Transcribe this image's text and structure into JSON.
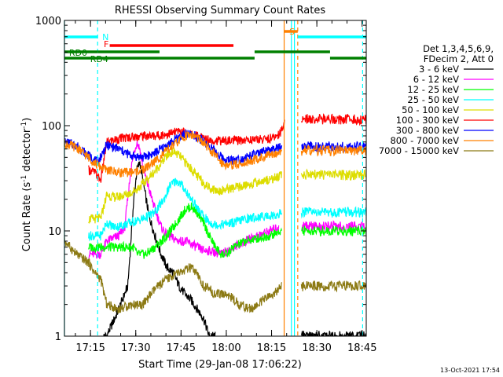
{
  "chart_data": {
    "type": "line",
    "title": "RHESSI Observing Summary Count Rates",
    "xlabel": "Start Time (29-Jan-08 17:06:22)",
    "ylabel_main": "Count Rate (s",
    "ylabel_sup1": "-1",
    "ylabel_mid": " detector",
    "ylabel_sup2": "-1",
    "ylabel_end": ")",
    "y_scale": "log",
    "ylim": [
      1,
      1000
    ],
    "xlim_minutes": [
      0,
      100
    ],
    "x_ticks": [
      {
        "m": 8.63,
        "label": "17:15"
      },
      {
        "m": 23.63,
        "label": "17:30"
      },
      {
        "m": 38.63,
        "label": "17:45"
      },
      {
        "m": 53.63,
        "label": "18:00"
      },
      {
        "m": 68.63,
        "label": "18:15"
      },
      {
        "m": 83.63,
        "label": "18:30"
      },
      {
        "m": 98.63,
        "label": "18:45"
      }
    ],
    "y_ticks": [
      {
        "v": 1,
        "label": "1"
      },
      {
        "v": 10,
        "label": "10"
      },
      {
        "v": 100,
        "label": "100"
      },
      {
        "v": 1000,
        "label": "1000"
      }
    ],
    "legend_header": [
      "Det 1,3,4,5,6,9,",
      "FDecim 2, Att 0"
    ],
    "series": [
      {
        "name": "3 - 6 keV",
        "color": "#000000",
        "points": [
          [
            13,
            1
          ],
          [
            14,
            1
          ],
          [
            18,
            1.8
          ],
          [
            21,
            3
          ],
          [
            22,
            8
          ],
          [
            23,
            20
          ],
          [
            24,
            38
          ],
          [
            25,
            45
          ],
          [
            26,
            30
          ],
          [
            28,
            14
          ],
          [
            30,
            9
          ],
          [
            32,
            6
          ],
          [
            34,
            4.5
          ],
          [
            36,
            4
          ],
          [
            38,
            3
          ],
          [
            40,
            2.5
          ],
          [
            42,
            2.2
          ],
          [
            44,
            1.8
          ],
          [
            46,
            1.5
          ],
          [
            48,
            1
          ],
          [
            50,
            1
          ]
        ]
      },
      {
        "name": "6 - 12 keV",
        "color": "#ff00ff",
        "points": [
          [
            8,
            6
          ],
          [
            12,
            6
          ],
          [
            14,
            8
          ],
          [
            16,
            8.5
          ],
          [
            18,
            9
          ],
          [
            20,
            11
          ],
          [
            22,
            38
          ],
          [
            23,
            55
          ],
          [
            24,
            70
          ],
          [
            25,
            60
          ],
          [
            26,
            40
          ],
          [
            28,
            25
          ],
          [
            30,
            16
          ],
          [
            32,
            11
          ],
          [
            34,
            9
          ],
          [
            36,
            8.5
          ],
          [
            38,
            8
          ],
          [
            40,
            8
          ],
          [
            42,
            7.5
          ],
          [
            44,
            7
          ],
          [
            46,
            6.5
          ],
          [
            48,
            6.5
          ],
          [
            52,
            6
          ],
          [
            56,
            7
          ],
          [
            60,
            8
          ],
          [
            64,
            9
          ],
          [
            68,
            10
          ],
          [
            70,
            10.5
          ],
          [
            71,
            11
          ]
        ]
      },
      {
        "name": "12 - 25 keV",
        "color": "#00ff00",
        "points": [
          [
            8,
            7
          ],
          [
            12,
            7
          ],
          [
            14,
            7
          ],
          [
            20,
            7
          ],
          [
            23,
            7
          ],
          [
            24,
            6
          ],
          [
            27,
            6
          ],
          [
            30,
            7
          ],
          [
            34,
            9
          ],
          [
            38,
            13
          ],
          [
            40,
            16
          ],
          [
            42,
            17
          ],
          [
            44,
            15
          ],
          [
            46,
            12
          ],
          [
            48,
            9
          ],
          [
            50,
            7
          ],
          [
            52,
            6
          ],
          [
            54,
            6
          ],
          [
            56,
            7
          ],
          [
            58,
            7.5
          ],
          [
            60,
            8
          ],
          [
            64,
            8.5
          ],
          [
            68,
            9
          ],
          [
            70,
            9.5
          ],
          [
            72,
            10
          ]
        ]
      },
      {
        "name": "25 - 50 keV",
        "color": "#00ffff",
        "points": [
          [
            8,
            9
          ],
          [
            12,
            9
          ],
          [
            14,
            12
          ],
          [
            16,
            11
          ],
          [
            18,
            11
          ],
          [
            20,
            11.5
          ],
          [
            22,
            12
          ],
          [
            24,
            12.5
          ],
          [
            26,
            13
          ],
          [
            30,
            15
          ],
          [
            33,
            20
          ],
          [
            35,
            27
          ],
          [
            37,
            30
          ],
          [
            39,
            27
          ],
          [
            42,
            20
          ],
          [
            45,
            15
          ],
          [
            48,
            12
          ],
          [
            50,
            11.5
          ],
          [
            52,
            11.5
          ],
          [
            56,
            12
          ],
          [
            60,
            13
          ],
          [
            64,
            13.5
          ],
          [
            68,
            14
          ],
          [
            70,
            14
          ],
          [
            72,
            15
          ]
        ]
      },
      {
        "name": "50 - 100 keV",
        "color": "#dddd00",
        "points": [
          [
            8,
            13
          ],
          [
            12,
            13
          ],
          [
            14,
            22
          ],
          [
            16,
            21
          ],
          [
            18,
            21
          ],
          [
            20,
            22
          ],
          [
            22,
            23
          ],
          [
            24,
            25
          ],
          [
            26,
            28
          ],
          [
            28,
            32
          ],
          [
            31,
            40
          ],
          [
            34,
            52
          ],
          [
            36,
            57
          ],
          [
            38,
            52
          ],
          [
            41,
            42
          ],
          [
            44,
            33
          ],
          [
            47,
            27
          ],
          [
            49,
            25
          ],
          [
            51,
            24
          ],
          [
            54,
            25
          ],
          [
            58,
            26
          ],
          [
            62,
            28
          ],
          [
            66,
            30
          ],
          [
            70,
            32
          ],
          [
            72,
            34
          ]
        ]
      },
      {
        "name": "100 - 300 keV",
        "color": "#ff0000",
        "points": [
          [
            8,
            38
          ],
          [
            10,
            36
          ],
          [
            12,
            30
          ],
          [
            14,
            70
          ],
          [
            18,
            75
          ],
          [
            22,
            78
          ],
          [
            26,
            80
          ],
          [
            30,
            80
          ],
          [
            34,
            83
          ],
          [
            38,
            88
          ],
          [
            41,
            85
          ],
          [
            44,
            80
          ],
          [
            47,
            75
          ],
          [
            50,
            72
          ],
          [
            53,
            72
          ],
          [
            56,
            72
          ],
          [
            60,
            73
          ],
          [
            64,
            74
          ],
          [
            68,
            75
          ],
          [
            70,
            78
          ],
          [
            72,
            90
          ],
          [
            73,
            115
          ]
        ]
      },
      {
        "name": "300 - 800 keV",
        "color": "#0000ff",
        "points": [
          [
            0,
            70
          ],
          [
            4,
            65
          ],
          [
            8,
            52
          ],
          [
            11,
            45
          ],
          [
            14,
            65
          ],
          [
            18,
            60
          ],
          [
            22,
            52
          ],
          [
            26,
            50
          ],
          [
            30,
            55
          ],
          [
            34,
            65
          ],
          [
            38,
            78
          ],
          [
            40,
            82
          ],
          [
            42,
            83
          ],
          [
            44,
            78
          ],
          [
            47,
            68
          ],
          [
            50,
            57
          ],
          [
            52,
            50
          ],
          [
            54,
            47
          ],
          [
            58,
            48
          ],
          [
            62,
            52
          ],
          [
            66,
            56
          ],
          [
            70,
            60
          ],
          [
            72,
            63
          ]
        ]
      },
      {
        "name": "800 - 7000 keV",
        "color": "#ff8000",
        "points": [
          [
            0,
            68
          ],
          [
            4,
            62
          ],
          [
            8,
            50
          ],
          [
            11,
            42
          ],
          [
            14,
            38
          ],
          [
            18,
            36
          ],
          [
            22,
            36
          ],
          [
            26,
            38
          ],
          [
            30,
            46
          ],
          [
            34,
            58
          ],
          [
            38,
            72
          ],
          [
            40,
            80
          ],
          [
            42,
            82
          ],
          [
            44,
            77
          ],
          [
            47,
            64
          ],
          [
            50,
            52
          ],
          [
            52,
            45
          ],
          [
            54,
            42
          ],
          [
            58,
            43
          ],
          [
            62,
            47
          ],
          [
            66,
            50
          ],
          [
            70,
            55
          ],
          [
            72,
            58
          ]
        ]
      },
      {
        "name": "7000 - 15000 keV",
        "color": "#8c7a14",
        "points": [
          [
            0,
            8
          ],
          [
            4,
            6
          ],
          [
            8,
            5
          ],
          [
            10,
            4
          ],
          [
            12,
            3.5
          ],
          [
            14,
            2
          ],
          [
            18,
            1.8
          ],
          [
            22,
            2
          ],
          [
            26,
            2
          ],
          [
            30,
            2.8
          ],
          [
            34,
            3.5
          ],
          [
            38,
            4
          ],
          [
            40,
            4.2
          ],
          [
            42,
            4.5
          ],
          [
            44,
            3.8
          ],
          [
            46,
            3
          ],
          [
            48,
            2.8
          ],
          [
            50,
            2.5
          ],
          [
            54,
            2.5
          ],
          [
            58,
            2
          ],
          [
            62,
            1.8
          ],
          [
            66,
            2.2
          ],
          [
            70,
            2.6
          ],
          [
            72,
            3
          ]
        ]
      }
    ],
    "segments": [
      {
        "label": "N",
        "color": "#00ffff",
        "label_m": 12
      },
      {
        "label": "F",
        "color": "#ff0000",
        "label_m": 12.5
      },
      {
        "label": "S",
        "color": "#ff8000",
        "label_m": 74
      },
      {
        "label": "RD0",
        "color": "#008000",
        "label_m": 1
      },
      {
        "label": "RD4",
        "color": "#008000",
        "label_m": 8
      }
    ],
    "timestamp": "13-Oct-2021 17:54"
  }
}
